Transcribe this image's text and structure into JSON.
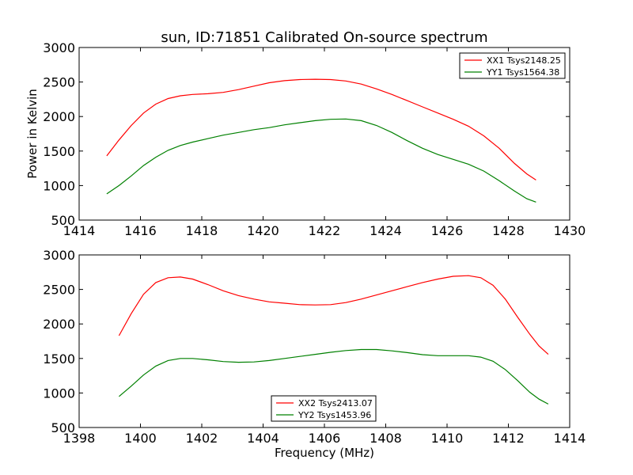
{
  "chart_data": [
    {
      "type": "line",
      "title": "sun, ID:71851 Calibrated On-source spectrum",
      "xlabel": "",
      "ylabel": "Power in Kelvin",
      "xlim": [
        1414,
        1430
      ],
      "ylim": [
        500,
        3000
      ],
      "xticks": [
        1414,
        1416,
        1418,
        1420,
        1422,
        1424,
        1426,
        1428,
        1430
      ],
      "yticks": [
        500,
        1000,
        1500,
        2000,
        2500,
        3000
      ],
      "grid": false,
      "legend_position": "top-right",
      "series": [
        {
          "name": "XX1 Tsys2148.25",
          "color": "#ff0000",
          "x": [
            1414.9,
            1415.3,
            1415.7,
            1416.1,
            1416.5,
            1416.9,
            1417.3,
            1417.7,
            1418.2,
            1418.7,
            1419.2,
            1419.7,
            1420.2,
            1420.7,
            1421.2,
            1421.7,
            1422.2,
            1422.7,
            1423.2,
            1423.7,
            1424.2,
            1424.7,
            1425.2,
            1425.7,
            1426.2,
            1426.7,
            1427.2,
            1427.7,
            1428.2,
            1428.6,
            1428.9
          ],
          "y": [
            1430,
            1660,
            1870,
            2050,
            2180,
            2260,
            2300,
            2320,
            2330,
            2350,
            2390,
            2440,
            2490,
            2520,
            2535,
            2540,
            2535,
            2515,
            2470,
            2400,
            2320,
            2230,
            2140,
            2050,
            1960,
            1860,
            1720,
            1540,
            1320,
            1170,
            1080
          ]
        },
        {
          "name": "YY1 Tsys1564.38",
          "color": "#008000",
          "x": [
            1414.9,
            1415.3,
            1415.7,
            1416.1,
            1416.5,
            1416.9,
            1417.3,
            1417.7,
            1418.2,
            1418.7,
            1419.2,
            1419.7,
            1420.2,
            1420.7,
            1421.2,
            1421.7,
            1422.2,
            1422.7,
            1423.2,
            1423.7,
            1424.2,
            1424.7,
            1425.2,
            1425.7,
            1426.2,
            1426.7,
            1427.2,
            1427.7,
            1428.2,
            1428.6,
            1428.9
          ],
          "y": [
            880,
            1000,
            1140,
            1290,
            1410,
            1510,
            1580,
            1630,
            1680,
            1730,
            1770,
            1810,
            1840,
            1880,
            1910,
            1940,
            1960,
            1965,
            1940,
            1870,
            1770,
            1650,
            1540,
            1450,
            1380,
            1310,
            1210,
            1070,
            920,
            810,
            760
          ]
        }
      ]
    },
    {
      "type": "line",
      "title": "",
      "xlabel": "Frequency (MHz)",
      "ylabel": "",
      "xlim": [
        1398,
        1414
      ],
      "ylim": [
        500,
        3000
      ],
      "xticks": [
        1398,
        1400,
        1402,
        1404,
        1406,
        1408,
        1410,
        1412,
        1414
      ],
      "yticks": [
        500,
        1000,
        1500,
        2000,
        2500,
        3000
      ],
      "grid": false,
      "legend_position": "bottom-center",
      "series": [
        {
          "name": "XX2 Tsys2413.07",
          "color": "#ff0000",
          "x": [
            1399.3,
            1399.7,
            1400.1,
            1400.5,
            1400.9,
            1401.3,
            1401.7,
            1402.2,
            1402.7,
            1403.2,
            1403.7,
            1404.2,
            1404.7,
            1405.2,
            1405.7,
            1406.2,
            1406.7,
            1407.2,
            1407.7,
            1408.2,
            1408.7,
            1409.2,
            1409.7,
            1410.2,
            1410.7,
            1411.1,
            1411.5,
            1411.9,
            1412.3,
            1412.7,
            1413.0,
            1413.3
          ],
          "y": [
            1830,
            2150,
            2430,
            2600,
            2670,
            2680,
            2650,
            2570,
            2480,
            2410,
            2360,
            2320,
            2300,
            2280,
            2275,
            2280,
            2310,
            2360,
            2420,
            2480,
            2540,
            2600,
            2650,
            2690,
            2700,
            2670,
            2560,
            2360,
            2100,
            1850,
            1680,
            1560
          ]
        },
        {
          "name": "YY2 Tsys1453.96",
          "color": "#008000",
          "x": [
            1399.3,
            1399.7,
            1400.1,
            1400.5,
            1400.9,
            1401.3,
            1401.7,
            1402.2,
            1402.7,
            1403.2,
            1403.7,
            1404.2,
            1404.7,
            1405.2,
            1405.7,
            1406.2,
            1406.7,
            1407.2,
            1407.7,
            1408.2,
            1408.7,
            1409.2,
            1409.7,
            1410.2,
            1410.7,
            1411.1,
            1411.5,
            1411.9,
            1412.3,
            1412.7,
            1413.0,
            1413.3
          ],
          "y": [
            950,
            1100,
            1260,
            1390,
            1470,
            1500,
            1500,
            1480,
            1455,
            1445,
            1450,
            1470,
            1500,
            1530,
            1560,
            1590,
            1615,
            1630,
            1630,
            1610,
            1585,
            1555,
            1540,
            1540,
            1540,
            1520,
            1460,
            1340,
            1180,
            1010,
            910,
            840
          ]
        }
      ]
    }
  ]
}
